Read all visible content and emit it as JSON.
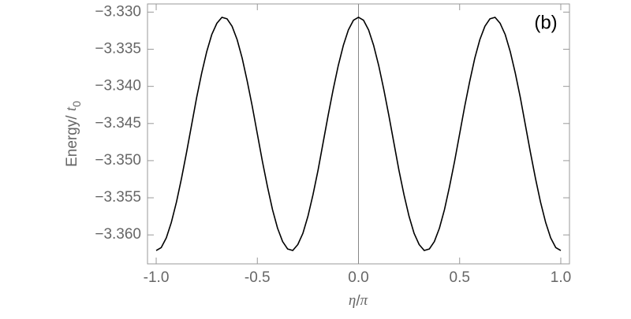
{
  "chart_data": {
    "type": "line",
    "panel_label": "(b)",
    "xlabel": {
      "symbol": "η",
      "rest": "/",
      "symbol2": "π"
    },
    "ylabel": {
      "text": "Energy/ ",
      "symbol": "t",
      "subscript": "0"
    },
    "x": [
      -1,
      -0.975,
      -0.95,
      -0.925,
      -0.9,
      -0.875,
      -0.85,
      -0.825,
      -0.8,
      -0.775,
      -0.75,
      -0.725,
      -0.7,
      -0.675,
      -0.65,
      -0.625,
      -0.6,
      -0.575,
      -0.55,
      -0.525,
      -0.5,
      -0.475,
      -0.45,
      -0.425,
      -0.4,
      -0.375,
      -0.35,
      -0.325,
      -0.3,
      -0.275,
      -0.25,
      -0.225,
      -0.2,
      -0.175,
      -0.15,
      -0.125,
      -0.1,
      -0.075,
      -0.05,
      -0.025,
      0,
      0.025,
      0.05,
      0.075,
      0.1,
      0.125,
      0.15,
      0.175,
      0.2,
      0.225,
      0.25,
      0.275,
      0.3,
      0.325,
      0.35,
      0.375,
      0.4,
      0.425,
      0.45,
      0.475,
      0.5,
      0.525,
      0.55,
      0.575,
      0.6,
      0.625,
      0.65,
      0.675,
      0.7,
      0.725,
      0.75,
      0.775,
      0.8,
      0.825,
      0.85,
      0.875,
      0.9,
      0.925,
      0.95,
      0.975,
      1
    ],
    "series": [
      {
        "color": "#000000",
        "values": [
          -3.3621,
          -3.3617,
          -3.3604,
          -3.3583,
          -3.3556,
          -3.3524,
          -3.3489,
          -3.3452,
          -3.3415,
          -3.3382,
          -3.3353,
          -3.333,
          -3.3315,
          -3.3307,
          -3.3309,
          -3.3319,
          -3.3337,
          -3.3362,
          -3.3393,
          -3.3427,
          -3.3464,
          -3.3501,
          -3.3535,
          -3.3566,
          -3.3591,
          -3.3609,
          -3.3619,
          -3.3621,
          -3.3613,
          -3.3598,
          -3.3575,
          -3.3546,
          -3.3513,
          -3.3476,
          -3.3439,
          -3.3404,
          -3.3372,
          -3.3345,
          -3.3324,
          -3.3311,
          -3.3307,
          -3.3311,
          -3.3324,
          -3.3345,
          -3.3372,
          -3.3404,
          -3.3439,
          -3.3476,
          -3.3513,
          -3.3546,
          -3.3575,
          -3.3598,
          -3.3613,
          -3.3621,
          -3.3619,
          -3.3609,
          -3.3591,
          -3.3566,
          -3.3535,
          -3.3501,
          -3.3464,
          -3.3427,
          -3.3393,
          -3.3362,
          -3.3337,
          -3.3319,
          -3.3309,
          -3.3307,
          -3.3315,
          -3.333,
          -3.3353,
          -3.3382,
          -3.3415,
          -3.3452,
          -3.3489,
          -3.3524,
          -3.3556,
          -3.3583,
          -3.3604,
          -3.3617,
          -3.3621
        ]
      }
    ],
    "xlim": [
      -1.043,
      1.043
    ],
    "ylim": [
      -3.3639,
      -3.3289
    ],
    "xticks": [
      {
        "value": -1,
        "label": "-1.0"
      },
      {
        "value": -0.5,
        "label": "-0.5"
      },
      {
        "value": 0,
        "label": "0.0"
      },
      {
        "value": 0.5,
        "label": "0.5"
      },
      {
        "value": 1,
        "label": "1.0"
      }
    ],
    "yticks": [
      {
        "value": -3.33,
        "label": "−3.330"
      },
      {
        "value": -3.335,
        "label": "−3.335"
      },
      {
        "value": -3.34,
        "label": "−3.340"
      },
      {
        "value": -3.345,
        "label": "−3.345"
      },
      {
        "value": -3.35,
        "label": "−3.350"
      },
      {
        "value": -3.355,
        "label": "−3.355"
      },
      {
        "value": -3.36,
        "label": "−3.360"
      }
    ],
    "zero_line": true
  }
}
